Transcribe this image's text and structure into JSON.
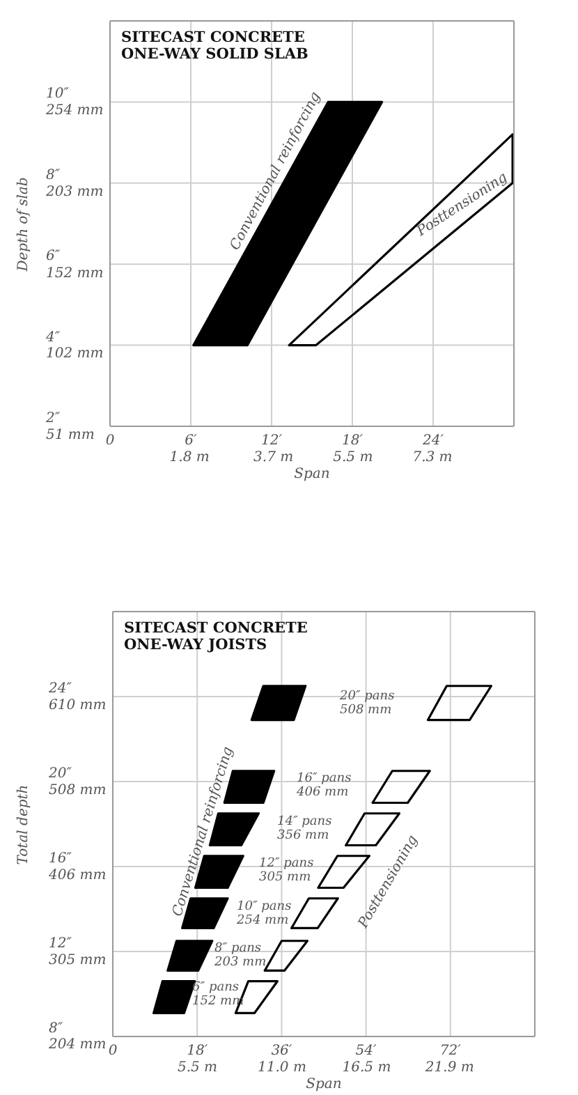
{
  "chart_data": [
    {
      "type": "area",
      "title": "SITECAST CONCRETE ONE-WAY SOLID SLAB",
      "xlabel": "Span",
      "ylabel": "Depth of slab",
      "xlim": [
        0,
        30
      ],
      "ylim": [
        2,
        12
      ],
      "xticks": [
        0,
        {
          "value": 6,
          "label": "6′"
        },
        {
          "value": 12,
          "label": "12′"
        },
        {
          "value": 18,
          "label": "18′"
        },
        {
          "value": 24,
          "label": "24′"
        }
      ],
      "x2lim": [
        0,
        9.144
      ],
      "x2ticks": [
        {
          "value": 1.8,
          "label": "1.8 m"
        },
        {
          "value": 3.7,
          "label": "3.7 m"
        },
        {
          "value": 5.5,
          "label": "5.5 m"
        },
        {
          "value": 7.3,
          "label": "7.3 m"
        }
      ],
      "yticks": [
        {
          "value": 2,
          "label": "2″"
        },
        {
          "value": 4,
          "label": "4″"
        },
        {
          "value": 6,
          "label": "6″"
        },
        {
          "value": 8,
          "label": "8″"
        },
        {
          "value": 10,
          "label": "10″"
        }
      ],
      "y2lim": [
        50.8,
        304.8
      ],
      "y2ticks": [
        {
          "value": 51,
          "label": "51 mm"
        },
        {
          "value": 102,
          "label": "102 mm"
        },
        {
          "value": 152,
          "label": "152 mm"
        },
        {
          "value": 203,
          "label": "203 mm"
        },
        {
          "value": 254,
          "label": "254 mm"
        }
      ],
      "grid": true,
      "series": [
        {
          "name": "Conventional reinforcing",
          "color": "#000000",
          "x": [
            6.2,
            10.2,
            20.2,
            16.2,
            6.2
          ],
          "values": [
            4,
            4,
            10,
            10,
            4
          ]
        },
        {
          "name": "Posttensioning",
          "type": "line",
          "color": "#000000",
          "x": [
            13.3,
            15.3,
            29.9,
            29.9,
            null,
            13.3,
            29.9
          ],
          "values": [
            4,
            4,
            8,
            9.2,
            null,
            4,
            9.2
          ]
        }
      ]
    },
    {
      "type": "area",
      "title": "SITECAST CONCRETE ONE-WAY JOISTS",
      "xlabel": "Span",
      "ylabel": "Total depth",
      "xlim": [
        0,
        90
      ],
      "ylim": [
        8,
        28
      ],
      "xticks": [
        0,
        {
          "value": 18,
          "label": "18′"
        },
        {
          "value": 36,
          "label": "36′"
        },
        {
          "value": 54,
          "label": "54′"
        },
        {
          "value": 72,
          "label": "72′"
        }
      ],
      "x2lim": [
        0,
        27.432
      ],
      "x2ticks": [
        {
          "value": 5.5,
          "label": "5.5 m"
        },
        {
          "value": 11,
          "label": "11.0 m"
        },
        {
          "value": 16.5,
          "label": "16.5 m"
        },
        {
          "value": 21.9,
          "label": "21.9 m"
        }
      ],
      "yticks": [
        {
          "value": 8,
          "label": "8″"
        },
        {
          "value": 12,
          "label": "12″"
        },
        {
          "value": 16,
          "label": "16″"
        },
        {
          "value": 20,
          "label": "20″"
        },
        {
          "value": 24,
          "label": "24″"
        }
      ],
      "y2lim": [
        203.2,
        711.2
      ],
      "y2ticks": [
        {
          "value": 204,
          "label": "204 mm"
        },
        {
          "value": 305,
          "label": "305 mm"
        },
        {
          "value": 406,
          "label": "406 mm"
        },
        {
          "value": 508,
          "label": "508 mm"
        },
        {
          "value": 610,
          "label": "610 mm"
        }
      ],
      "grid": true,
      "series": [
        {
          "name": "Conventional reinforcing",
          "color": "#000000",
          "x": [
            8.7,
            15.2,
            17.5,
            10.6,
            8.7,
            null,
            11.7,
            18.2,
            21.2,
            13.6,
            11.7,
            null,
            14.8,
            21.5,
            24.5,
            16.6,
            14.8,
            null,
            17.6,
            24.5,
            27.8,
            19.5,
            17.6,
            null,
            20.7,
            27.4,
            31.1,
            22.5,
            20.7,
            null,
            23.8,
            32.1,
            34.4,
            25.6,
            23.8,
            null,
            29.6,
            38.6,
            41.1,
            32.1,
            29.6
          ],
          "values": [
            9.1,
            9.1,
            10.6,
            10.6,
            9.1,
            null,
            11.1,
            11.1,
            12.5,
            12.5,
            11.1,
            null,
            13.1,
            13.1,
            14.5,
            14.5,
            13.1,
            null,
            15,
            15,
            16.5,
            16.5,
            15,
            null,
            17,
            17,
            18.5,
            18.5,
            17,
            null,
            19,
            19,
            20.5,
            20.5,
            19,
            null,
            22.9,
            22.9,
            24.5,
            24.5,
            22.9
          ]
        },
        {
          "name": "Posttensioning",
          "type": "line",
          "color": "#000000",
          "x": [
            26.2,
            30.2,
            35.1,
            null,
            26.2,
            28.9,
            35.1,
            null,
            32.4,
            36.6,
            41.5,
            null,
            32.4,
            36.0,
            41.5,
            null,
            38.1,
            43.7,
            48.0,
            null,
            38.1,
            41.8,
            48.0,
            null,
            43.8,
            49.2,
            54.7,
            null,
            43.8,
            47.9,
            54.7,
            null,
            49.7,
            56.1,
            61.1,
            null,
            49.7,
            53.7,
            61.1,
            null,
            55.4,
            62.9,
            67.6,
            null,
            55.4,
            59.6,
            67.6,
            null,
            67.2,
            76.1,
            80.7,
            null,
            67.2,
            71.2,
            80.7
          ],
          "values": [
            9.1,
            9.1,
            10.6,
            null,
            9.1,
            10.6,
            10.6,
            null,
            11.1,
            11.1,
            12.5,
            null,
            11.1,
            12.5,
            12.5,
            null,
            13.1,
            13.1,
            14.5,
            null,
            13.1,
            14.5,
            14.5,
            null,
            15,
            15,
            16.5,
            null,
            15,
            16.5,
            16.5,
            null,
            17,
            17,
            18.5,
            null,
            17,
            18.5,
            18.5,
            null,
            19,
            19,
            20.5,
            null,
            19,
            20.5,
            20.5,
            null,
            22.9,
            22.9,
            24.5,
            null,
            22.9,
            24.5,
            24.5
          ]
        }
      ],
      "annotations": [
        "20″ pans 508 mm",
        "16″ pans 406 mm",
        "14″ pans 356 mm",
        "12″ pans 305 mm",
        "10″ pans 254 mm",
        "8″ pans 203 mm",
        "6″ pans 152 mm"
      ]
    }
  ]
}
